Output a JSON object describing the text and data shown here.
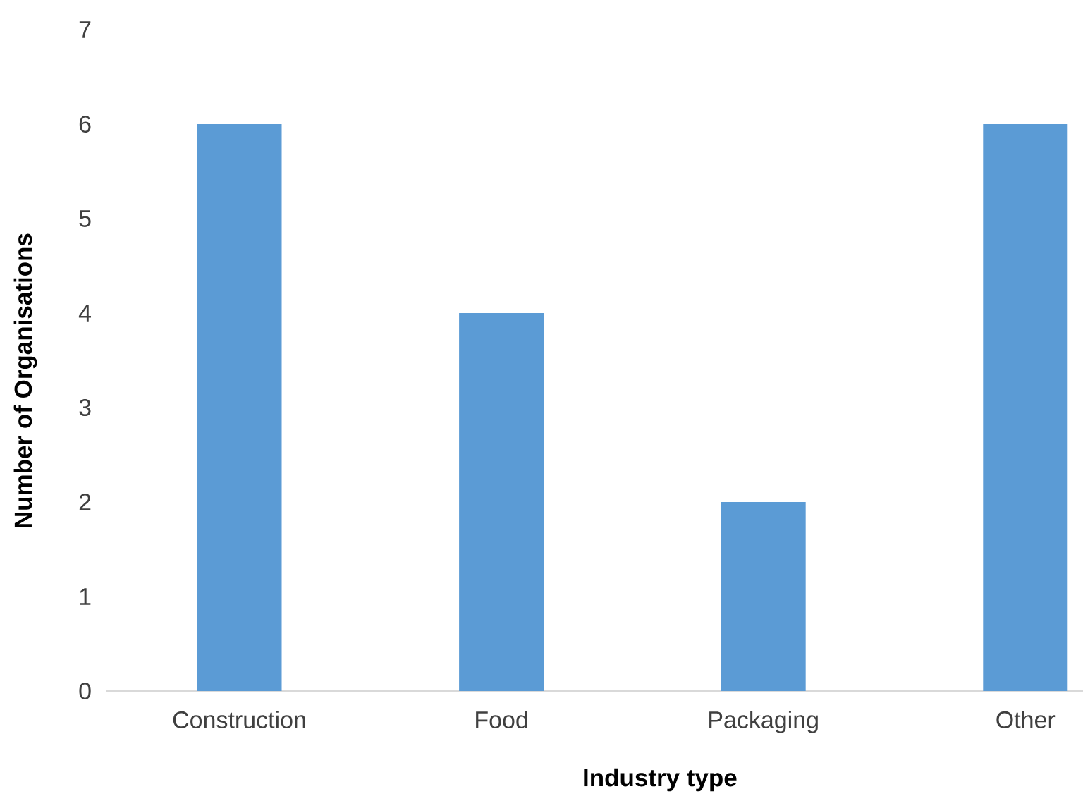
{
  "chart_data": {
    "type": "bar",
    "categories": [
      "Construction",
      "Food",
      "Packaging",
      "Other"
    ],
    "values": [
      6,
      4,
      2,
      6
    ],
    "color": "#5b9bd5",
    "xlabel": "Industry type",
    "ylabel": "Number of Organisations",
    "ylim": [
      0,
      7
    ],
    "yticks": [
      0,
      1,
      2,
      3,
      4,
      5,
      6,
      7
    ]
  }
}
